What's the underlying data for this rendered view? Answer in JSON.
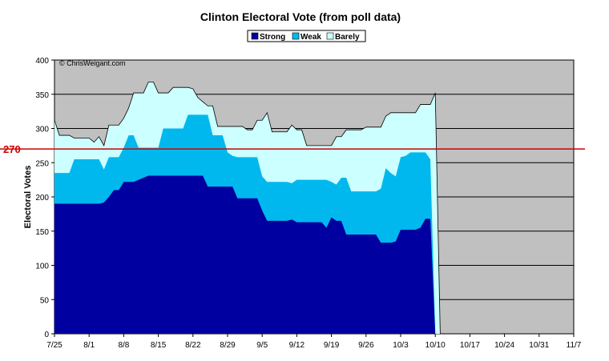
{
  "chart_data": {
    "type": "area",
    "title": "Clinton Electoral Vote (from poll data)",
    "ylabel": "Electoral Votes",
    "xlabel": "",
    "copyright": "© ChrisWeigant.com",
    "ylim": [
      0,
      400
    ],
    "yticks": [
      0,
      50,
      100,
      150,
      200,
      250,
      300,
      350,
      400
    ],
    "x_ticks": [
      "7/25",
      "8/1",
      "8/8",
      "8/15",
      "8/22",
      "8/29",
      "9/5",
      "9/12",
      "9/19",
      "9/26",
      "10/3",
      "10/10",
      "10/17",
      "10/24",
      "10/31",
      "11/7"
    ],
    "x_range_days": [
      0,
      105
    ],
    "grid": true,
    "stacked": true,
    "legend_position": "top-center",
    "reference_line": {
      "value": 270,
      "label": "270",
      "color": "#cc0000"
    },
    "colors": {
      "Strong": "#0000a0",
      "Weak": "#00b8ee",
      "Barely": "#ccffff",
      "plot_bg": "#c0c0c0"
    },
    "series": [
      {
        "name": "Strong",
        "points": [
          [
            0,
            190
          ],
          [
            9,
            190
          ],
          [
            10,
            192
          ],
          [
            11,
            200
          ],
          [
            12,
            210
          ],
          [
            13,
            210
          ],
          [
            14,
            222
          ],
          [
            16,
            222
          ],
          [
            18,
            228
          ],
          [
            19,
            231
          ],
          [
            30,
            231
          ],
          [
            31,
            215
          ],
          [
            36,
            215
          ],
          [
            37,
            198
          ],
          [
            41,
            198
          ],
          [
            42,
            180
          ],
          [
            43,
            165
          ],
          [
            47,
            165
          ],
          [
            48,
            167
          ],
          [
            49,
            163
          ],
          [
            54,
            163
          ],
          [
            55,
            155
          ],
          [
            56,
            170
          ],
          [
            57,
            165
          ],
          [
            58,
            165
          ],
          [
            59,
            145
          ],
          [
            65,
            145
          ],
          [
            66,
            133
          ],
          [
            68,
            133
          ],
          [
            69,
            135
          ],
          [
            70,
            152
          ],
          [
            73,
            152
          ],
          [
            74,
            155
          ],
          [
            75,
            168
          ],
          [
            76,
            168
          ],
          [
            77,
            0
          ]
        ]
      },
      {
        "name": "Weak",
        "points": [
          [
            0,
            235
          ],
          [
            3,
            235
          ],
          [
            4,
            255
          ],
          [
            9,
            255
          ],
          [
            10,
            240
          ],
          [
            11,
            258
          ],
          [
            13,
            258
          ],
          [
            14,
            272
          ],
          [
            15,
            290
          ],
          [
            16,
            290
          ],
          [
            17,
            272
          ],
          [
            21,
            272
          ],
          [
            22,
            300
          ],
          [
            26,
            300
          ],
          [
            27,
            320
          ],
          [
            31,
            320
          ],
          [
            32,
            290
          ],
          [
            34,
            290
          ],
          [
            35,
            265
          ],
          [
            36,
            260
          ],
          [
            37,
            258
          ],
          [
            41,
            258
          ],
          [
            42,
            230
          ],
          [
            43,
            222
          ],
          [
            47,
            222
          ],
          [
            48,
            220
          ],
          [
            49,
            225
          ],
          [
            55,
            225
          ],
          [
            56,
            222
          ],
          [
            57,
            218
          ],
          [
            58,
            228
          ],
          [
            59,
            228
          ],
          [
            60,
            208
          ],
          [
            65,
            208
          ],
          [
            66,
            212
          ],
          [
            67,
            242
          ],
          [
            68,
            235
          ],
          [
            69,
            230
          ],
          [
            70,
            258
          ],
          [
            71,
            260
          ],
          [
            72,
            265
          ],
          [
            75,
            265
          ],
          [
            76,
            255
          ],
          [
            77,
            0
          ]
        ]
      },
      {
        "name": "Barely",
        "points": [
          [
            0,
            312
          ],
          [
            1,
            290
          ],
          [
            3,
            290
          ],
          [
            4,
            286
          ],
          [
            7,
            286
          ],
          [
            8,
            280
          ],
          [
            9,
            288
          ],
          [
            10,
            275
          ],
          [
            11,
            305
          ],
          [
            13,
            305
          ],
          [
            14,
            315
          ],
          [
            15,
            330
          ],
          [
            16,
            352
          ],
          [
            18,
            352
          ],
          [
            19,
            368
          ],
          [
            20,
            368
          ],
          [
            21,
            352
          ],
          [
            23,
            352
          ],
          [
            24,
            360
          ],
          [
            27,
            360
          ],
          [
            28,
            358
          ],
          [
            29,
            345
          ],
          [
            31,
            333
          ],
          [
            32,
            333
          ],
          [
            33,
            303
          ],
          [
            38,
            303
          ],
          [
            39,
            298
          ],
          [
            40,
            298
          ],
          [
            41,
            312
          ],
          [
            42,
            312
          ],
          [
            43,
            323
          ],
          [
            44,
            295
          ],
          [
            47,
            295
          ],
          [
            48,
            305
          ],
          [
            49,
            298
          ],
          [
            50,
            298
          ],
          [
            51,
            275
          ],
          [
            56,
            275
          ],
          [
            57,
            288
          ],
          [
            58,
            288
          ],
          [
            59,
            298
          ],
          [
            62,
            298
          ],
          [
            63,
            302
          ],
          [
            66,
            302
          ],
          [
            67,
            318
          ],
          [
            68,
            323
          ],
          [
            73,
            323
          ],
          [
            74,
            335
          ],
          [
            76,
            335
          ],
          [
            77,
            352
          ],
          [
            78,
            0
          ]
        ]
      }
    ]
  }
}
